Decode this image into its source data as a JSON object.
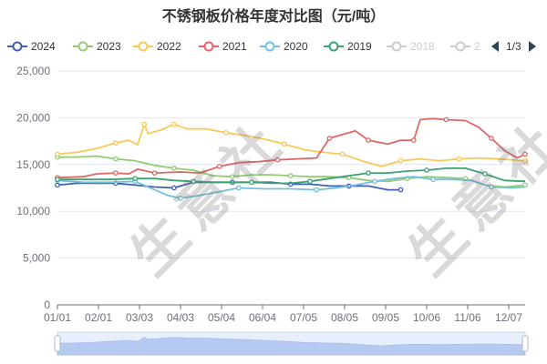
{
  "page": {
    "title": "不锈钢板价格年度对比图（元/吨）",
    "watermark_text": "生意社",
    "legend_page": "1/3"
  },
  "chart_data": {
    "type": "line",
    "title": "不锈钢板价格年度对比图（元/吨）",
    "x_ticks": [
      "01/01",
      "02/01",
      "03/03",
      "04/03",
      "05/04",
      "06/04",
      "07/05",
      "08/05",
      "09/05",
      "10/06",
      "11/06",
      "12/07"
    ],
    "x_range_days": [
      0,
      361
    ],
    "ylim": [
      0,
      25000
    ],
    "y_ticks": [
      0,
      5000,
      10000,
      15000,
      20000,
      25000
    ],
    "y_tick_labels": [
      "0",
      "5,000",
      "10,000",
      "15,000",
      "20,000",
      "25,000"
    ],
    "grid": "horizontal",
    "legend_position": "top",
    "legend": [
      {
        "name": "2024",
        "color": "#3f60b4",
        "visible": true
      },
      {
        "name": "2023",
        "color": "#91cc75",
        "visible": true
      },
      {
        "name": "2022",
        "color": "#fac858",
        "visible": true
      },
      {
        "name": "2021",
        "color": "#e06666",
        "visible": true
      },
      {
        "name": "2020",
        "color": "#73c0de",
        "visible": true
      },
      {
        "name": "2019",
        "color": "#3ba272",
        "visible": true
      },
      {
        "name": "2018",
        "color": "#cccccc",
        "visible": false
      },
      {
        "name": "2",
        "color": "#cccccc",
        "visible": false
      }
    ],
    "series": [
      {
        "name": "2024",
        "color": "#3f60b4",
        "points": [
          [
            0,
            12800
          ],
          [
            15,
            13000
          ],
          [
            30,
            13000
          ],
          [
            45,
            13000
          ],
          [
            60,
            12800
          ],
          [
            75,
            12600
          ],
          [
            90,
            12500
          ],
          [
            105,
            13100
          ],
          [
            120,
            13100
          ],
          [
            135,
            13100
          ],
          [
            150,
            13100
          ],
          [
            165,
            13100
          ],
          [
            180,
            12900
          ],
          [
            195,
            12900
          ],
          [
            210,
            12700
          ],
          [
            225,
            12700
          ],
          [
            240,
            12700
          ],
          [
            255,
            12300
          ],
          [
            265,
            12300
          ]
        ]
      },
      {
        "name": "2023",
        "color": "#91cc75",
        "points": [
          [
            0,
            15800
          ],
          [
            15,
            15800
          ],
          [
            30,
            15900
          ],
          [
            45,
            15600
          ],
          [
            60,
            15400
          ],
          [
            75,
            14900
          ],
          [
            90,
            14600
          ],
          [
            105,
            14400
          ],
          [
            120,
            13800
          ],
          [
            135,
            13700
          ],
          [
            150,
            13900
          ],
          [
            165,
            13900
          ],
          [
            180,
            13800
          ],
          [
            195,
            13700
          ],
          [
            210,
            13700
          ],
          [
            225,
            13600
          ],
          [
            240,
            13300
          ],
          [
            255,
            13200
          ],
          [
            270,
            13500
          ],
          [
            285,
            13700
          ],
          [
            300,
            13600
          ],
          [
            315,
            13500
          ],
          [
            330,
            12800
          ],
          [
            345,
            12600
          ],
          [
            361,
            12800
          ]
        ]
      },
      {
        "name": "2022",
        "color": "#fac858",
        "points": [
          [
            0,
            16100
          ],
          [
            15,
            16300
          ],
          [
            30,
            16700
          ],
          [
            45,
            17300
          ],
          [
            55,
            17600
          ],
          [
            62,
            17100
          ],
          [
            67,
            19300
          ],
          [
            70,
            18300
          ],
          [
            80,
            18700
          ],
          [
            90,
            19300
          ],
          [
            100,
            18800
          ],
          [
            115,
            18800
          ],
          [
            130,
            18400
          ],
          [
            145,
            18100
          ],
          [
            160,
            17700
          ],
          [
            175,
            17200
          ],
          [
            190,
            16600
          ],
          [
            205,
            16300
          ],
          [
            220,
            16100
          ],
          [
            235,
            15400
          ],
          [
            250,
            14800
          ],
          [
            265,
            15400
          ],
          [
            280,
            15600
          ],
          [
            295,
            15400
          ],
          [
            310,
            15600
          ],
          [
            325,
            15700
          ],
          [
            340,
            15600
          ],
          [
            361,
            15400
          ]
        ]
      },
      {
        "name": "2021",
        "color": "#e06666",
        "points": [
          [
            0,
            13600
          ],
          [
            20,
            13700
          ],
          [
            30,
            14000
          ],
          [
            45,
            14100
          ],
          [
            55,
            14000
          ],
          [
            62,
            14500
          ],
          [
            75,
            14100
          ],
          [
            95,
            14200
          ],
          [
            110,
            14100
          ],
          [
            125,
            14800
          ],
          [
            140,
            15200
          ],
          [
            155,
            15300
          ],
          [
            170,
            15500
          ],
          [
            185,
            15600
          ],
          [
            200,
            15700
          ],
          [
            210,
            17800
          ],
          [
            220,
            18200
          ],
          [
            230,
            18600
          ],
          [
            240,
            17600
          ],
          [
            255,
            17200
          ],
          [
            265,
            17600
          ],
          [
            275,
            17600
          ],
          [
            280,
            19800
          ],
          [
            290,
            19900
          ],
          [
            300,
            19800
          ],
          [
            315,
            19700
          ],
          [
            325,
            19000
          ],
          [
            335,
            17800
          ],
          [
            345,
            16500
          ],
          [
            355,
            15700
          ],
          [
            361,
            16100
          ]
        ]
      },
      {
        "name": "2020",
        "color": "#73c0de",
        "points": [
          [
            0,
            13300
          ],
          [
            20,
            13100
          ],
          [
            40,
            13100
          ],
          [
            60,
            13200
          ],
          [
            75,
            12300
          ],
          [
            85,
            11700
          ],
          [
            95,
            11400
          ],
          [
            110,
            11700
          ],
          [
            125,
            12100
          ],
          [
            140,
            12500
          ],
          [
            160,
            12400
          ],
          [
            180,
            12400
          ],
          [
            200,
            12300
          ],
          [
            215,
            12500
          ],
          [
            230,
            12800
          ],
          [
            245,
            13200
          ],
          [
            260,
            13500
          ],
          [
            275,
            13700
          ],
          [
            290,
            13400
          ],
          [
            305,
            13400
          ],
          [
            320,
            13300
          ],
          [
            335,
            12600
          ],
          [
            350,
            12500
          ],
          [
            361,
            12600
          ]
        ]
      },
      {
        "name": "2019",
        "color": "#3ba272",
        "points": [
          [
            0,
            13400
          ],
          [
            20,
            13400
          ],
          [
            40,
            13400
          ],
          [
            60,
            13500
          ],
          [
            75,
            13500
          ],
          [
            90,
            13300
          ],
          [
            105,
            13200
          ],
          [
            120,
            13100
          ],
          [
            135,
            13100
          ],
          [
            150,
            13100
          ],
          [
            165,
            13000
          ],
          [
            180,
            13000
          ],
          [
            195,
            13200
          ],
          [
            210,
            13500
          ],
          [
            225,
            13800
          ],
          [
            240,
            14100
          ],
          [
            255,
            14100
          ],
          [
            270,
            14300
          ],
          [
            285,
            14400
          ],
          [
            300,
            14600
          ],
          [
            315,
            14600
          ],
          [
            330,
            14000
          ],
          [
            345,
            13300
          ],
          [
            361,
            13200
          ]
        ]
      }
    ]
  },
  "slider": {
    "start_fraction": 0.0,
    "end_fraction": 1.0
  }
}
